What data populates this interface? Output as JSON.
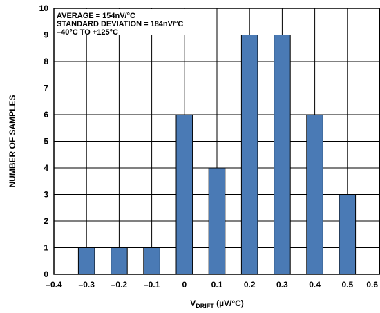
{
  "chart_data": {
    "type": "bar",
    "title": "",
    "xlabel_main": "V",
    "xlabel_sub": "DRIFT",
    "xlabel_unit": " (µV/°C)",
    "ylabel": "NUMBER OF SAMPLES",
    "x_ticks": [
      "–0.4",
      "–0.3",
      "–0.2",
      "–0.1",
      "0",
      "0.1",
      "0.2",
      "0.3",
      "0.4",
      "0.5",
      "0.6"
    ],
    "y_ticks": [
      "0",
      "1",
      "2",
      "3",
      "4",
      "5",
      "6",
      "7",
      "8",
      "9",
      "10"
    ],
    "xlim": [
      -0.4,
      0.6
    ],
    "ylim": [
      0,
      10
    ],
    "grid": true,
    "bar_color": "#4a7ab5",
    "categories": [
      -0.3,
      -0.2,
      -0.1,
      0,
      0.1,
      0.2,
      0.3,
      0.4,
      0.5
    ],
    "values": [
      1,
      1,
      1,
      6,
      4,
      9,
      9,
      6,
      3
    ],
    "annotations": [
      "AVERAGE = 154nV/°C",
      "STANDARD DEVIATION = 184nV/°C",
      "–40°C TO +125°C"
    ]
  }
}
